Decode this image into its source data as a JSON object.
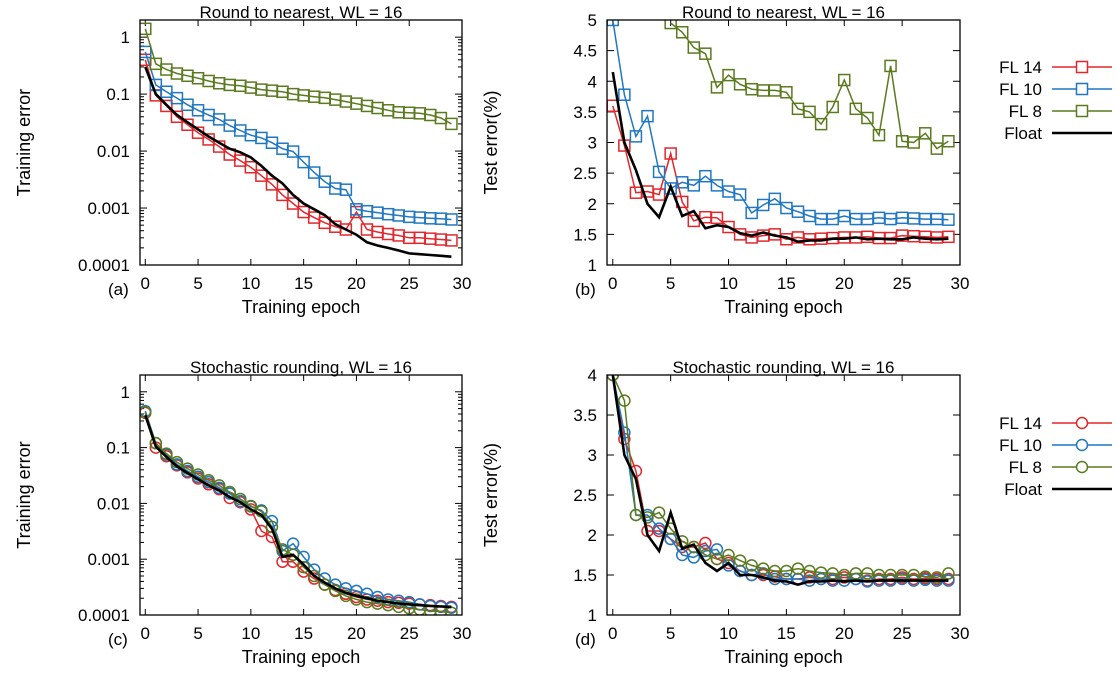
{
  "colors": {
    "fl14": "#e3262b",
    "fl10": "#1f77c2",
    "fl8": "#5a7a1e",
    "float": "#000000"
  },
  "chart_data": [
    {
      "panel": "(a)",
      "type": "line",
      "title": "Round to nearest, WL = 16",
      "xlabel": "Training epoch",
      "ylabel": "Training error",
      "yscale": "log",
      "xlim": [
        -0.5,
        30
      ],
      "ylim": [
        0.0001,
        2
      ],
      "xticks": [
        "0",
        "5",
        "10",
        "15",
        "20",
        "25",
        "30"
      ],
      "yticks": [
        {
          "v": 0.0001,
          "label": "0.0001"
        },
        {
          "v": 0.001,
          "label": "0.001"
        },
        {
          "v": 0.01,
          "label": "0.01"
        },
        {
          "v": 0.1,
          "label": "0.1"
        },
        {
          "v": 1,
          "label": "1"
        }
      ],
      "marker": "square",
      "series": [
        {
          "name": "FL 14",
          "color": "#e3262b",
          "values": [
            0.4,
            0.095,
            0.062,
            0.04,
            0.029,
            0.021,
            0.016,
            0.012,
            0.0087,
            0.0068,
            0.0052,
            0.0037,
            0.0026,
            0.0017,
            0.0012,
            0.00085,
            0.00068,
            0.00055,
            0.00047,
            0.00042,
            0.00085,
            0.00042,
            0.00038,
            0.00035,
            0.00033,
            0.0003,
            0.0003,
            0.00029,
            0.00028,
            0.00027
          ]
        },
        {
          "name": "FL 10",
          "color": "#1f77c2",
          "values": [
            0.55,
            0.145,
            0.11,
            0.085,
            0.065,
            0.052,
            0.043,
            0.036,
            0.028,
            0.023,
            0.019,
            0.017,
            0.014,
            0.011,
            0.0098,
            0.0064,
            0.0042,
            0.0029,
            0.0022,
            0.0021,
            0.00095,
            0.00088,
            0.00083,
            0.00078,
            0.00074,
            0.0007,
            0.00068,
            0.00066,
            0.00065,
            0.00063
          ]
        },
        {
          "name": "FL  8",
          "color": "#5a7a1e",
          "values": [
            1.4,
            0.34,
            0.27,
            0.23,
            0.21,
            0.19,
            0.17,
            0.155,
            0.145,
            0.14,
            0.13,
            0.12,
            0.115,
            0.11,
            0.1,
            0.095,
            0.09,
            0.086,
            0.08,
            0.074,
            0.068,
            0.062,
            0.057,
            0.052,
            0.048,
            0.047,
            0.046,
            0.043,
            0.038,
            0.03
          ]
        },
        {
          "name": "Float",
          "color": "#000000",
          "values": [
            0.3,
            0.1,
            0.065,
            0.043,
            0.032,
            0.024,
            0.018,
            0.014,
            0.011,
            0.0095,
            0.0077,
            0.0055,
            0.0037,
            0.0027,
            0.0017,
            0.0012,
            0.00095,
            0.00075,
            0.00052,
            0.00042,
            0.00034,
            0.00025,
            0.00022,
            0.0002,
            0.00018,
            0.00016,
            0.000155,
            0.00015,
            0.000145,
            0.00014
          ]
        }
      ]
    },
    {
      "panel": "(b)",
      "type": "line",
      "title": "Round to nearest, WL = 16",
      "xlabel": "Training epoch",
      "ylabel": "Test error(%)",
      "yscale": "linear",
      "xlim": [
        -0.5,
        30
      ],
      "ylim": [
        1,
        5
      ],
      "xticks": [
        "0",
        "5",
        "10",
        "15",
        "20",
        "25",
        "30"
      ],
      "yticks": [
        {
          "v": 1,
          "label": "1"
        },
        {
          "v": 1.5,
          "label": "1.5"
        },
        {
          "v": 2,
          "label": "2"
        },
        {
          "v": 2.5,
          "label": "2.5"
        },
        {
          "v": 3,
          "label": "3"
        },
        {
          "v": 3.5,
          "label": "3.5"
        },
        {
          "v": 4,
          "label": "4"
        },
        {
          "v": 4.5,
          "label": "4.5"
        },
        {
          "v": 5,
          "label": "5"
        }
      ],
      "marker": "square",
      "series": [
        {
          "name": "FL 14",
          "color": "#e3262b",
          "values": [
            3.6,
            2.95,
            2.18,
            2.2,
            2.15,
            2.82,
            2.03,
            1.72,
            1.78,
            1.77,
            1.62,
            1.5,
            1.45,
            1.48,
            1.5,
            1.42,
            1.45,
            1.42,
            1.43,
            1.44,
            1.45,
            1.45,
            1.46,
            1.44,
            1.44,
            1.48,
            1.47,
            1.46,
            1.45,
            1.46
          ]
        },
        {
          "name": "FL 10",
          "color": "#1f77c2",
          "values": [
            5.0,
            3.78,
            3.1,
            3.43,
            2.52,
            2.25,
            2.35,
            2.3,
            2.45,
            2.3,
            2.2,
            2.15,
            1.85,
            1.98,
            2.08,
            1.93,
            1.87,
            1.8,
            1.75,
            1.75,
            1.8,
            1.75,
            1.75,
            1.77,
            1.75,
            1.77,
            1.76,
            1.75,
            1.75,
            1.74
          ]
        },
        {
          "name": "FL  8",
          "color": "#5a7a1e",
          "values": [
            null,
            null,
            null,
            null,
            null,
            4.95,
            4.8,
            4.55,
            4.45,
            3.9,
            4.1,
            3.95,
            3.87,
            3.85,
            3.85,
            3.82,
            3.55,
            3.5,
            3.3,
            3.58,
            4.02,
            3.55,
            3.4,
            3.12,
            4.25,
            3.02,
            3.0,
            3.15,
            2.9,
            3.02
          ]
        },
        {
          "name": "Float",
          "color": "#000000",
          "values": [
            4.15,
            3.0,
            2.55,
            2.0,
            1.78,
            2.28,
            1.8,
            1.88,
            1.6,
            1.65,
            1.62,
            1.52,
            1.48,
            1.53,
            1.48,
            1.45,
            1.38,
            1.4,
            1.4,
            1.43,
            1.43,
            1.45,
            1.42,
            1.43,
            1.42,
            1.42,
            1.45,
            1.43,
            1.42,
            1.43
          ]
        }
      ]
    },
    {
      "panel": "(c)",
      "type": "line",
      "title": "Stochastic rounding, WL = 16",
      "xlabel": "Training epoch",
      "ylabel": "Training error",
      "yscale": "log",
      "xlim": [
        -0.5,
        30
      ],
      "ylim": [
        0.0001,
        2
      ],
      "xticks": [
        "0",
        "5",
        "10",
        "15",
        "20",
        "25",
        "30"
      ],
      "yticks": [
        {
          "v": 0.0001,
          "label": "0.0001"
        },
        {
          "v": 0.001,
          "label": "0.001"
        },
        {
          "v": 0.01,
          "label": "0.01"
        },
        {
          "v": 0.1,
          "label": "0.1"
        },
        {
          "v": 1,
          "label": "1"
        }
      ],
      "marker": "circle",
      "series": [
        {
          "name": "FL 14",
          "color": "#e3262b",
          "values": [
            0.42,
            0.1,
            0.07,
            0.048,
            0.036,
            0.028,
            0.022,
            0.018,
            0.0125,
            0.0105,
            0.0078,
            0.0032,
            0.0025,
            0.0009,
            0.0009,
            0.0006,
            0.00045,
            0.00035,
            0.00028,
            0.00024,
            0.00021,
            0.00019,
            0.00018,
            0.00017,
            0.000165,
            0.00016,
            0.000155,
            0.00015,
            0.000145,
            0.00014
          ]
        },
        {
          "name": "FL 10",
          "color": "#1f77c2",
          "values": [
            0.45,
            0.12,
            0.075,
            0.05,
            0.038,
            0.03,
            0.024,
            0.019,
            0.015,
            0.011,
            0.0088,
            0.0075,
            0.0048,
            0.0014,
            0.0019,
            0.0011,
            0.00065,
            0.00045,
            0.00035,
            0.0003,
            0.00027,
            0.00024,
            0.00021,
            0.00019,
            0.00018,
            0.00017,
            0.000155,
            0.000145,
            0.00014,
            0.000135
          ]
        },
        {
          "name": "FL  8",
          "color": "#5a7a1e",
          "values": [
            0.43,
            0.12,
            0.078,
            0.055,
            0.042,
            0.033,
            0.026,
            0.021,
            0.016,
            0.012,
            0.009,
            0.0072,
            0.0038,
            0.0015,
            0.0012,
            0.00072,
            0.0005,
            0.00035,
            0.00027,
            0.00022,
            0.00019,
            0.00017,
            0.00016,
            0.00015,
            0.00014,
            0.000132,
            0.000125,
            0.000118,
            0.000115,
            0.00011
          ]
        },
        {
          "name": "Float",
          "color": "#000000",
          "values": [
            0.38,
            0.105,
            0.068,
            0.046,
            0.035,
            0.027,
            0.021,
            0.017,
            0.013,
            0.0105,
            0.0078,
            0.0062,
            0.0035,
            0.0011,
            0.0012,
            0.0008,
            0.0005,
            0.00038,
            0.0003,
            0.00025,
            0.00022,
            0.0002,
            0.00018,
            0.00017,
            0.00016,
            0.000155,
            0.00015,
            0.000145,
            0.000142,
            0.00014
          ]
        }
      ]
    },
    {
      "panel": "(d)",
      "type": "line",
      "title": "Stochastic rounding, WL = 16",
      "xlabel": "Training epoch",
      "ylabel": "Test error(%)",
      "yscale": "linear",
      "xlim": [
        -0.5,
        30
      ],
      "ylim": [
        1,
        4
      ],
      "xticks": [
        "0",
        "5",
        "10",
        "15",
        "20",
        "25",
        "30"
      ],
      "yticks": [
        {
          "v": 1,
          "label": "1"
        },
        {
          "v": 1.5,
          "label": "1.5"
        },
        {
          "v": 2,
          "label": "2"
        },
        {
          "v": 2.5,
          "label": "2.5"
        },
        {
          "v": 3,
          "label": "3"
        },
        {
          "v": 3.5,
          "label": "3.5"
        },
        {
          "v": 4,
          "label": "4"
        }
      ],
      "marker": "circle",
      "series": [
        {
          "name": "FL 14",
          "color": "#e3262b",
          "values": [
            4.0,
            3.2,
            2.8,
            2.05,
            2.05,
            1.95,
            1.85,
            1.85,
            1.9,
            1.7,
            1.65,
            1.55,
            1.5,
            1.5,
            1.48,
            1.45,
            1.45,
            1.47,
            1.45,
            1.45,
            1.47,
            1.45,
            1.43,
            1.45,
            1.45,
            1.47,
            1.45,
            1.46,
            1.45,
            1.45
          ]
        },
        {
          "name": "FL 10",
          "color": "#1f77c2",
          "values": [
            4.0,
            3.28,
            2.25,
            2.25,
            2.08,
            1.95,
            1.75,
            1.72,
            1.8,
            1.82,
            1.62,
            1.55,
            1.5,
            1.52,
            1.45,
            1.45,
            1.45,
            1.43,
            1.45,
            1.43,
            1.43,
            1.45,
            1.42,
            1.43,
            1.43,
            1.45,
            1.43,
            1.44,
            1.43,
            1.43
          ]
        },
        {
          "name": "FL  8",
          "color": "#5a7a1e",
          "values": [
            4.0,
            3.68,
            2.25,
            2.22,
            2.28,
            2.08,
            1.92,
            1.85,
            1.75,
            1.7,
            1.75,
            1.68,
            1.62,
            1.58,
            1.55,
            1.55,
            1.58,
            1.55,
            1.53,
            1.52,
            1.5,
            1.52,
            1.52,
            1.5,
            1.5,
            1.5,
            1.5,
            1.48,
            1.47,
            1.52
          ]
        },
        {
          "name": "Float",
          "color": "#000000",
          "values": [
            4.0,
            3.0,
            2.7,
            2.0,
            1.8,
            2.28,
            1.83,
            1.88,
            1.65,
            1.55,
            1.65,
            1.5,
            1.5,
            1.47,
            1.43,
            1.42,
            1.38,
            1.42,
            1.42,
            1.43,
            1.42,
            1.43,
            1.42,
            1.43,
            1.43,
            1.43,
            1.43,
            1.43,
            1.43,
            1.43
          ]
        }
      ]
    }
  ]
}
